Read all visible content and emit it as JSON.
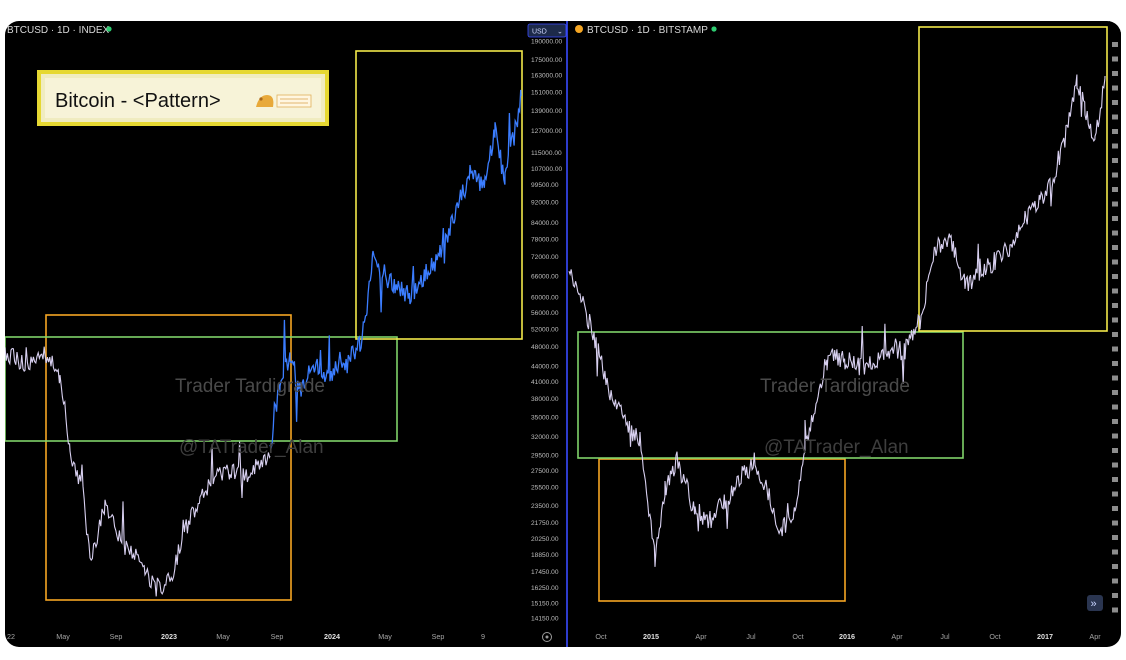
{
  "left_panel": {
    "symbol": "BTCUSD · 1D · INDEX",
    "currency_button": "USD",
    "title_box": "Bitcoin - <Pattern>",
    "watermark_1": "Trader Tardigrade",
    "watermark_2": "@TATrader_Alan",
    "price_ticks": [
      "190000.00",
      "175000.00",
      "163000.00",
      "151000.00",
      "139000.00",
      "127000.00",
      "115000.00",
      "107000.00",
      "99500.00",
      "92000.00",
      "84000.00",
      "78000.00",
      "72000.00",
      "66000.00",
      "60000.00",
      "56000.00",
      "52000.00",
      "48000.00",
      "44000.00",
      "41000.00",
      "38000.00",
      "35000.00",
      "32000.00",
      "29500.00",
      "27500.00",
      "25500.00",
      "23500.00",
      "21750.00",
      "20250.00",
      "18850.00",
      "17450.00",
      "16250.00",
      "15150.00",
      "14150.00"
    ],
    "time_ticks": [
      "22",
      "May",
      "Sep",
      "2023",
      "May",
      "Sep",
      "2024",
      "May",
      "Sep",
      "9"
    ]
  },
  "right_panel": {
    "symbol": "BTCUSD · 1D · BITSTAMP",
    "watermark_1": "Trader Tardigrade",
    "watermark_2": "@TATrader_Alan",
    "time_ticks": [
      "Oct",
      "2015",
      "Apr",
      "Jul",
      "Oct",
      "2016",
      "Apr",
      "Jul",
      "Oct",
      "2017",
      "Apr"
    ],
    "scroll_button": "»"
  },
  "colors": {
    "background": "#000000",
    "price_line_left_old": "#d8d0f0",
    "price_line_left_new": "#3b7dff",
    "price_line_right": "#d8d0f0",
    "box_orange": "#f5a623",
    "box_green": "#7fd36a",
    "box_yellow": "#f2e84a",
    "divider": "#3a4cff"
  },
  "chart_data": [
    {
      "type": "line",
      "title": "BTCUSD · 1D · INDEX",
      "xlabel": "",
      "ylabel": "",
      "y_scale": "log",
      "ylim": [
        14150,
        190000
      ],
      "x": [
        "2022-01",
        "2022-03",
        "2022-05",
        "2022-07",
        "2022-09",
        "2022-11",
        "2023-01",
        "2023-03",
        "2023-05",
        "2023-07",
        "2023-09",
        "2023-11",
        "2024-01",
        "2024-03",
        "2024-05",
        "2024-07",
        "2024-09",
        "2024-11",
        "2025-01"
      ],
      "series": [
        {
          "values": [
            43000,
            44000,
            36000,
            21000,
            19500,
            16500,
            17500,
            27000,
            28000,
            30000,
            26500,
            37000,
            43000,
            68000,
            63000,
            59000,
            58000,
            93000,
            104000
          ]
        }
      ],
      "annotations": [
        "Trader Tardigrade",
        "@TATrader_Alan"
      ],
      "grid": false
    },
    {
      "type": "line",
      "title": "BTCUSD · 1D · BITSTAMP",
      "xlabel": "",
      "ylabel": "",
      "y_scale": "log",
      "x": [
        "2014-09",
        "2014-11",
        "2015-01",
        "2015-03",
        "2015-05",
        "2015-07",
        "2015-09",
        "2015-11",
        "2016-01",
        "2016-03",
        "2016-05",
        "2016-07",
        "2016-09",
        "2016-11",
        "2017-01",
        "2017-03",
        "2017-04"
      ],
      "series": [
        {
          "values": [
            480,
            370,
            220,
            270,
            235,
            280,
            235,
            370,
            430,
            415,
            450,
            670,
            610,
            740,
            950,
            1050,
            1200
          ]
        }
      ],
      "annotations": [
        "Trader Tardigrade",
        "@TATrader_Alan"
      ],
      "grid": false
    }
  ]
}
